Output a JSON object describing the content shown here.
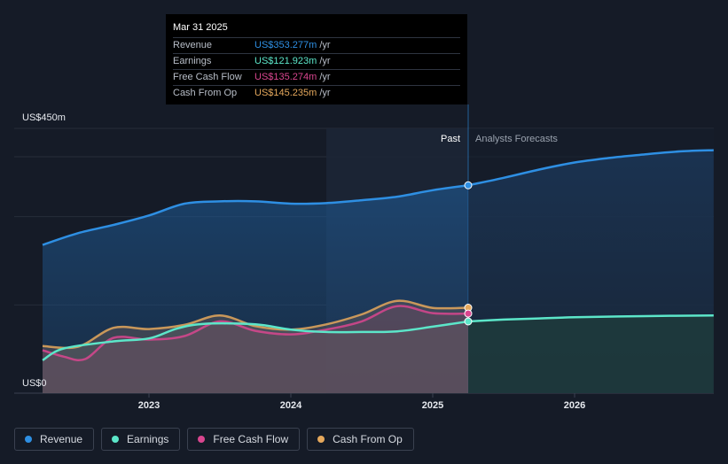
{
  "chart_data": {
    "type": "area",
    "title": "",
    "y_unit_label_top": "US$450m",
    "y_unit_label_bottom": "US$0",
    "ylim": [
      0,
      450
    ],
    "x_ticks": [
      {
        "label": "2023",
        "value": 2023.0
      },
      {
        "label": "2024",
        "value": 2024.0
      },
      {
        "label": "2025",
        "value": 2025.0
      },
      {
        "label": "2026",
        "value": 2026.0
      }
    ],
    "xlim": [
      2021.8,
      2027.0
    ],
    "past_label": "Past",
    "forecast_label": "Analysts Forecasts",
    "divider_x": 2025.25,
    "highlight_start_x": 2024.25,
    "series": [
      {
        "name": "Revenue",
        "color": "#2e8fe3",
        "past": [
          [
            2022.25,
            252
          ],
          [
            2022.5,
            272
          ],
          [
            2022.75,
            286
          ],
          [
            2023.0,
            302
          ],
          [
            2023.25,
            322
          ],
          [
            2023.5,
            326
          ],
          [
            2023.75,
            326
          ],
          [
            2024.0,
            322
          ],
          [
            2024.25,
            323
          ],
          [
            2024.5,
            328
          ],
          [
            2024.75,
            334
          ],
          [
            2025.0,
            345
          ],
          [
            2025.25,
            353.3
          ]
        ],
        "forecast": [
          [
            2025.25,
            353.3
          ],
          [
            2025.5,
            366
          ],
          [
            2025.75,
            380
          ],
          [
            2026.0,
            392
          ],
          [
            2026.25,
            400
          ],
          [
            2026.5,
            406
          ],
          [
            2026.75,
            411
          ],
          [
            2026.98,
            413
          ]
        ]
      },
      {
        "name": "Earnings",
        "color": "#5ce6c9",
        "past": [
          [
            2022.25,
            56
          ],
          [
            2022.4,
            76
          ],
          [
            2022.75,
            88
          ],
          [
            2023.0,
            93
          ],
          [
            2023.2,
            110
          ],
          [
            2023.4,
            118
          ],
          [
            2023.75,
            117
          ],
          [
            2024.0,
            108
          ],
          [
            2024.25,
            104
          ],
          [
            2024.5,
            104
          ],
          [
            2024.75,
            105
          ],
          [
            2025.0,
            113
          ],
          [
            2025.25,
            121.9
          ]
        ],
        "forecast": [
          [
            2025.25,
            121.9
          ],
          [
            2025.5,
            125
          ],
          [
            2025.75,
            127
          ],
          [
            2026.0,
            129
          ],
          [
            2026.5,
            131
          ],
          [
            2026.98,
            132
          ]
        ]
      },
      {
        "name": "Free Cash Flow",
        "color": "#d9468f",
        "past": [
          [
            2022.25,
            73
          ],
          [
            2022.4,
            62
          ],
          [
            2022.55,
            58
          ],
          [
            2022.75,
            94
          ],
          [
            2023.0,
            91
          ],
          [
            2023.25,
            97
          ],
          [
            2023.5,
            122
          ],
          [
            2023.75,
            106
          ],
          [
            2024.0,
            100
          ],
          [
            2024.25,
            108
          ],
          [
            2024.5,
            122
          ],
          [
            2024.75,
            148
          ],
          [
            2025.0,
            136
          ],
          [
            2025.25,
            135.3
          ]
        ],
        "forecast": []
      },
      {
        "name": "Cash From Op",
        "color": "#e5a85c",
        "past": [
          [
            2022.25,
            80
          ],
          [
            2022.5,
            79
          ],
          [
            2022.75,
            111
          ],
          [
            2023.0,
            109
          ],
          [
            2023.25,
            116
          ],
          [
            2023.5,
            132
          ],
          [
            2023.75,
            114
          ],
          [
            2024.0,
            108
          ],
          [
            2024.25,
            117
          ],
          [
            2024.5,
            134
          ],
          [
            2024.75,
            157
          ],
          [
            2025.0,
            145
          ],
          [
            2025.25,
            145.2
          ]
        ],
        "forecast": []
      }
    ]
  },
  "tooltip": {
    "date": "Mar 31 2025",
    "rows": [
      {
        "label": "Revenue",
        "value": "US$353.277m",
        "unit": "/yr",
        "color": "#2e8fe3"
      },
      {
        "label": "Earnings",
        "value": "US$121.923m",
        "unit": "/yr",
        "color": "#5ce6c9"
      },
      {
        "label": "Free Cash Flow",
        "value": "US$135.274m",
        "unit": "/yr",
        "color": "#d9468f"
      },
      {
        "label": "Cash From Op",
        "value": "US$145.235m",
        "unit": "/yr",
        "color": "#e5a85c"
      }
    ]
  },
  "legend": [
    {
      "label": "Revenue",
      "color": "#2e8fe3"
    },
    {
      "label": "Earnings",
      "color": "#5ce6c9"
    },
    {
      "label": "Free Cash Flow",
      "color": "#d9468f"
    },
    {
      "label": "Cash From Op",
      "color": "#e5a85c"
    }
  ]
}
